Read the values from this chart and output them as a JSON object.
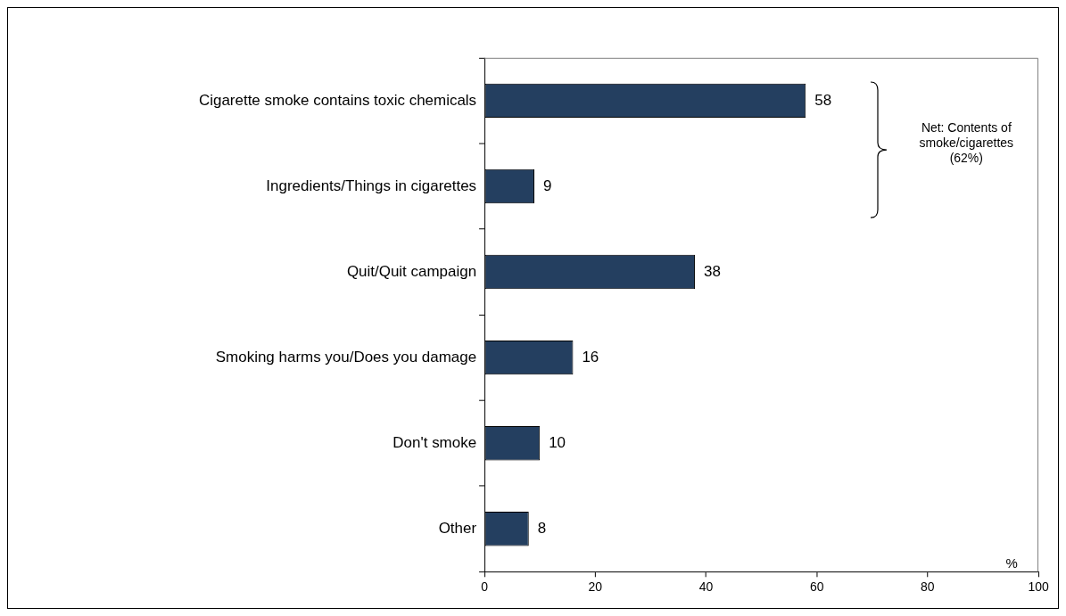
{
  "chart_data": {
    "type": "bar",
    "orientation": "horizontal",
    "categories": [
      "Cigarette smoke contains toxic chemicals",
      "Ingredients/Things in cigarettes",
      "Quit/Quit campaign",
      "Smoking harms you/Does you damage",
      "Don't smoke",
      "Other"
    ],
    "values": [
      58,
      9,
      38,
      16,
      10,
      8
    ],
    "color": "#243f60",
    "xlabel": "%",
    "xlim": [
      0,
      100
    ],
    "xticks": [
      0,
      20,
      40,
      60,
      80,
      100
    ],
    "data_labels": true,
    "annotations": [
      "Net: Contents of smoke/cigarettes (62%)"
    ]
  }
}
